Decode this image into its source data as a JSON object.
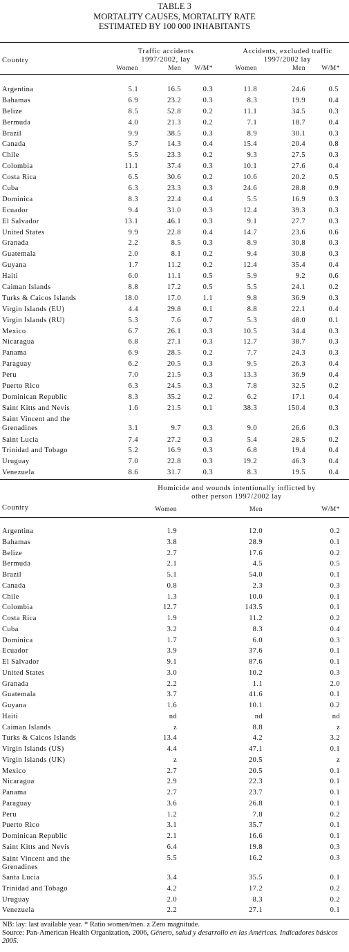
{
  "caption": {
    "line1": "TABLE 3",
    "line2": "MORTALITY CAUSES, MORTALITY RATE",
    "line3": "ESTIMATED BY 100 000 INHABITANTS"
  },
  "table1": {
    "country_header": "Country",
    "group1_line1": "Traffic accidents",
    "group1_line2": "1997/2002, lay",
    "group2_line1": "Accidents, excluded traffic",
    "group2_line2": "1997/2002 lay",
    "col_women": "Women",
    "col_men": "Men",
    "col_ratio": "W/M*",
    "rows": [
      {
        "country": "Argentina",
        "tw": "5.1",
        "tm": "16.5",
        "tr": "0.3",
        "aw": "11.8",
        "am": "24.6",
        "ar": "0.5"
      },
      {
        "country": "Bahamas",
        "tw": "6.9",
        "tm": "23.2",
        "tr": "0.3",
        "aw": "8.3",
        "am": "19.9",
        "ar": "0.4"
      },
      {
        "country": "Belize",
        "tw": "8.5",
        "tm": "52.8",
        "tr": "0.2",
        "aw": "11.1",
        "am": "34.5",
        "ar": "0.3"
      },
      {
        "country": "Bermuda",
        "tw": "4.0",
        "tm": "21.3",
        "tr": "0.2",
        "aw": "7.1",
        "am": "18.7",
        "ar": "0.4"
      },
      {
        "country": "Brazil",
        "tw": "9.9",
        "tm": "38.5",
        "tr": "0.3",
        "aw": "8.9",
        "am": "30.1",
        "ar": "0.3"
      },
      {
        "country": "Canada",
        "tw": "5.7",
        "tm": "14.3",
        "tr": "0.4",
        "aw": "15.4",
        "am": "20.4",
        "ar": "0.8"
      },
      {
        "country": "Chile",
        "tw": "5.5",
        "tm": "23.3",
        "tr": "0.2",
        "aw": "9.3",
        "am": "27.5",
        "ar": "0.3"
      },
      {
        "country": "Colombia",
        "tw": "11.1",
        "tm": "37.4",
        "tr": "0.3",
        "aw": "10.1",
        "am": "27.6",
        "ar": "0.4"
      },
      {
        "country": "Costa Rica",
        "tw": "6.5",
        "tm": "30.6",
        "tr": "0.2",
        "aw": "10.6",
        "am": "20.2",
        "ar": "0.5"
      },
      {
        "country": "Cuba",
        "tw": "6.3",
        "tm": "23.3",
        "tr": "0.3",
        "aw": "24.6",
        "am": "28.8",
        "ar": "0.9"
      },
      {
        "country": "Dominica",
        "tw": "8.3",
        "tm": "22.4",
        "tr": "0.4",
        "aw": "5.5",
        "am": "16.9",
        "ar": "0.3"
      },
      {
        "country": "Ecuador",
        "tw": "9.4",
        "tm": "31.0",
        "tr": "0.3",
        "aw": "12.4",
        "am": "39.3",
        "ar": "0.3"
      },
      {
        "country": "El Salvador",
        "tw": "13.1",
        "tm": "46.1",
        "tr": "0.3",
        "aw": "9.1",
        "am": "27.7",
        "ar": "0.3"
      },
      {
        "country": "United States",
        "tw": "9.9",
        "tm": "22.8",
        "tr": "0.4",
        "aw": "14.7",
        "am": "23.6",
        "ar": "0.6"
      },
      {
        "country": "Granada",
        "tw": "2.2",
        "tm": "8.5",
        "tr": "0.3",
        "aw": "8.9",
        "am": "30.8",
        "ar": "0.3"
      },
      {
        "country": "Guatemala",
        "tw": "2.0",
        "tm": "8.1",
        "tr": "0.2",
        "aw": "9.4",
        "am": "30.8",
        "ar": "0.3"
      },
      {
        "country": "Guyana",
        "tw": "1.7",
        "tm": "11.2",
        "tr": "0.2",
        "aw": "12.4",
        "am": "35.4",
        "ar": "0.4"
      },
      {
        "country": "Haiti",
        "tw": "6.0",
        "tm": "11.1",
        "tr": "0.5",
        "aw": "5.9",
        "am": "9.2",
        "ar": "0.6"
      },
      {
        "country": "Caiman Islands",
        "tw": "8.8",
        "tm": "17.2",
        "tr": "0.5",
        "aw": "5.5",
        "am": "24.1",
        "ar": "0.2"
      },
      {
        "country": "Turks & Caicos Islands",
        "tw": "18.0",
        "tm": "17.0",
        "tr": "1.1",
        "aw": "9.8",
        "am": "36.9",
        "ar": "0.3"
      },
      {
        "country": "Virgin Islands (EU)",
        "tw": "4.4",
        "tm": "29.8",
        "tr": "0.1",
        "aw": "8.8",
        "am": "22.1",
        "ar": "0.4"
      },
      {
        "country": "Virgin Islands (RU)",
        "tw": "5.3",
        "tm": "7.6",
        "tr": "0.7",
        "aw": "5.3",
        "am": "48.0",
        "ar": "0.1"
      },
      {
        "country": "Mexico",
        "tw": "6.7",
        "tm": "26.1",
        "tr": "0.3",
        "aw": "10.5",
        "am": "34.4",
        "ar": "0.3"
      },
      {
        "country": "Nicaragua",
        "tw": "6.8",
        "tm": "27.1",
        "tr": "0.3",
        "aw": "12.7",
        "am": "38.7",
        "ar": "0.3"
      },
      {
        "country": "Panama",
        "tw": "6.9",
        "tm": "28.5",
        "tr": "0.2",
        "aw": "7.7",
        "am": "24.3",
        "ar": "0.3"
      },
      {
        "country": "Paraguay",
        "tw": "6.2",
        "tm": "20.5",
        "tr": "0.3",
        "aw": "9.5",
        "am": "26.3",
        "ar": "0.4"
      },
      {
        "country": "Peru",
        "tw": "7.0",
        "tm": "21.5",
        "tr": "0.3",
        "aw": "13.3",
        "am": "36.9",
        "ar": "0.4"
      },
      {
        "country": "Puerto Rico",
        "tw": "6.3",
        "tm": "24.5",
        "tr": "0.3",
        "aw": "7.8",
        "am": "32.5",
        "ar": "0.2"
      },
      {
        "country": "Dominican Republic",
        "tw": "8.3",
        "tm": "35.2",
        "tr": "0.2",
        "aw": "6.2",
        "am": "17.1",
        "ar": "0.4"
      },
      {
        "country": "Saint Kitts and Nevis",
        "tw": "1.6",
        "tm": "21.5",
        "tr": "0.1",
        "aw": "38.3",
        "am": "150.4",
        "ar": "0.3"
      },
      {
        "country_line1": "Saint Vincent and the",
        "country_line2": "Grenadines",
        "tw": "3.1",
        "tm": "9.7",
        "tr": "0.3",
        "aw": "9.0",
        "am": "26.6",
        "ar": "0.3"
      },
      {
        "country": "Saint Lucia",
        "tw": "7.4",
        "tm": "27.2",
        "tr": "0.3",
        "aw": "5.4",
        "am": "28.5",
        "ar": "0.2"
      },
      {
        "country": "Trinidad and Tobago",
        "tw": "5.2",
        "tm": "16.9",
        "tr": "0.3",
        "aw": "6.8",
        "am": "19.4",
        "ar": "0.4"
      },
      {
        "country": "Uruguay",
        "tw": "7.0",
        "tm": "22.8",
        "tr": "0.3",
        "aw": "19.2",
        "am": "46.3",
        "ar": "0.4"
      },
      {
        "country": "Venezuela",
        "tw": "8.6",
        "tm": "31.7",
        "tr": "0.3",
        "aw": "8.3",
        "am": "19.5",
        "ar": "0.4"
      }
    ]
  },
  "table2": {
    "country_header": "Country",
    "group_line1": "Homicide and wounds intentionally inflicted by",
    "group_line2": "other person 1997/2002 lay",
    "col_women": "Women",
    "col_men": "Men",
    "col_ratio": "W/M*",
    "rows": [
      {
        "country": "Argentina",
        "w": "1.9",
        "m": "12.0",
        "r": "0.2"
      },
      {
        "country": "Bahamas",
        "w": "3.8",
        "m": "28.9",
        "r": "0.1"
      },
      {
        "country": "Belize",
        "w": "2.7",
        "m": "17.6",
        "r": "0.2"
      },
      {
        "country": "Bermuda",
        "w": "2.1",
        "m": "4.5",
        "r": "0.5"
      },
      {
        "country": "Brazil",
        "w": "5.1",
        "m": "54.0",
        "r": "0.1"
      },
      {
        "country": "Canada",
        "w": "0.8",
        "m": "2.3",
        "r": "0.3"
      },
      {
        "country": "Chile",
        "w": "1.3",
        "m": "10.0",
        "r": "0.1"
      },
      {
        "country": "Colombia",
        "w": "12.7",
        "m": "143.5",
        "r": "0.1"
      },
      {
        "country": "Costa Rica",
        "w": "1.9",
        "m": "11.2",
        "r": "0.2"
      },
      {
        "country": "Cuba",
        "w": "3.2",
        "m": "8.3",
        "r": "0.4"
      },
      {
        "country": "Dominica",
        "w": "1.7",
        "m": "6.0",
        "r": "0.3"
      },
      {
        "country": "Ecuador",
        "w": "3.9",
        "m": "37.6",
        "r": "0.1"
      },
      {
        "country": "El Salvador",
        "w": "9.1",
        "m": "87.6",
        "r": "0.1"
      },
      {
        "country": "United States",
        "w": "3.0",
        "m": "10.2",
        "r": "0.3"
      },
      {
        "country": "Granada",
        "w": "2.2",
        "m": "1.1",
        "r": "2.0"
      },
      {
        "country": "Guatemala",
        "w": "3.7",
        "m": "41.6",
        "r": "0.1"
      },
      {
        "country": "Guyana",
        "w": "1.6",
        "m": "10.1",
        "r": "0.2"
      },
      {
        "country": "Haiti",
        "w": "nd",
        "m": "nd",
        "r": "nd"
      },
      {
        "country": "Caiman Islands",
        "w": "z",
        "m": "8.8",
        "r": "z"
      },
      {
        "country": "Turks & Caicos Islands",
        "w": "13.4",
        "m": "4.2",
        "r": "3.2"
      },
      {
        "country": "Virgin Islands (US)",
        "w": "4.4",
        "m": "47.1",
        "r": "0.1"
      },
      {
        "country": "Virgin Islands (UK)",
        "w": "z",
        "m": "20.5",
        "r": "z"
      },
      {
        "country": "Mexico",
        "w": "2.7",
        "m": "20.5",
        "r": "0.1"
      },
      {
        "country": "Nicaragua",
        "w": "2.9",
        "m": "22.3",
        "r": "0.1"
      },
      {
        "country": "Panama",
        "w": "2.7",
        "m": "23.7",
        "r": "0.1"
      },
      {
        "country": "Paraguay",
        "w": "3.6",
        "m": "26.8",
        "r": "0.1"
      },
      {
        "country": "Peru",
        "w": "1.2",
        "m": "7.8",
        "r": "0.2"
      },
      {
        "country": "Puerto Rico",
        "w": "3.1",
        "m": "35.7",
        "r": "0.1"
      },
      {
        "country": "Dominican Republic",
        "w": "2.1",
        "m": "16.6",
        "r": "0.1"
      },
      {
        "country": "Saint Kitts and Nevis",
        "w": "6.4",
        "m": "19.8",
        "r": "0.3"
      },
      {
        "country_line1": "Saint Vincent and the",
        "country_line2": "Grenadines",
        "w": "5.5",
        "m": "16.2",
        "r": "0.3"
      },
      {
        "country": "Santa Lucia",
        "w": "3.4",
        "m": "35.5",
        "r": "0.1"
      },
      {
        "country": "Trinidad and Tobago",
        "w": "4.2",
        "m": "17.2",
        "r": "0.2"
      },
      {
        "country": "Uruguay",
        "w": "2.0",
        "m": "8.3",
        "r": "0.2"
      },
      {
        "country": "Venezuela",
        "w": "2.2",
        "m": "27.1",
        "r": "0.1"
      }
    ]
  },
  "footnote": {
    "line1": "NB: lay: last available year. * Ratio women/men. z Zero magnitude.",
    "source_pre": "Source: Pan-American Health Organization, 2006, ",
    "source_italic": "Género, salud y desarrollo en las Américas. Indicadores básicos 2005."
  }
}
